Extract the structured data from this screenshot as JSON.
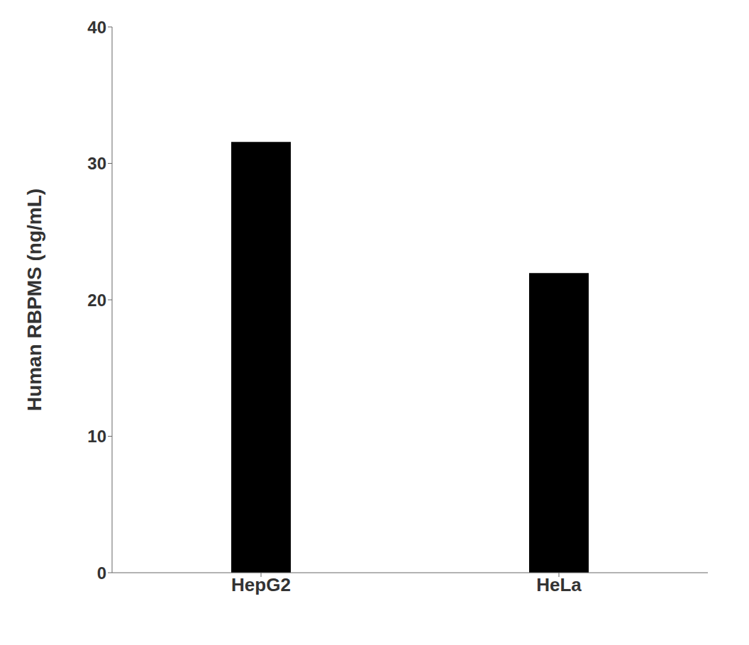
{
  "chart_data": {
    "type": "bar",
    "categories": [
      "HepG2",
      "HeLa"
    ],
    "values": [
      31.57,
      21.96
    ],
    "color": "#000000",
    "ylabel": "Human RBPMS (ng/mL)",
    "ylim": [
      0,
      40
    ],
    "yticks": [
      0,
      10,
      20,
      30,
      40
    ],
    "grid": false
  }
}
